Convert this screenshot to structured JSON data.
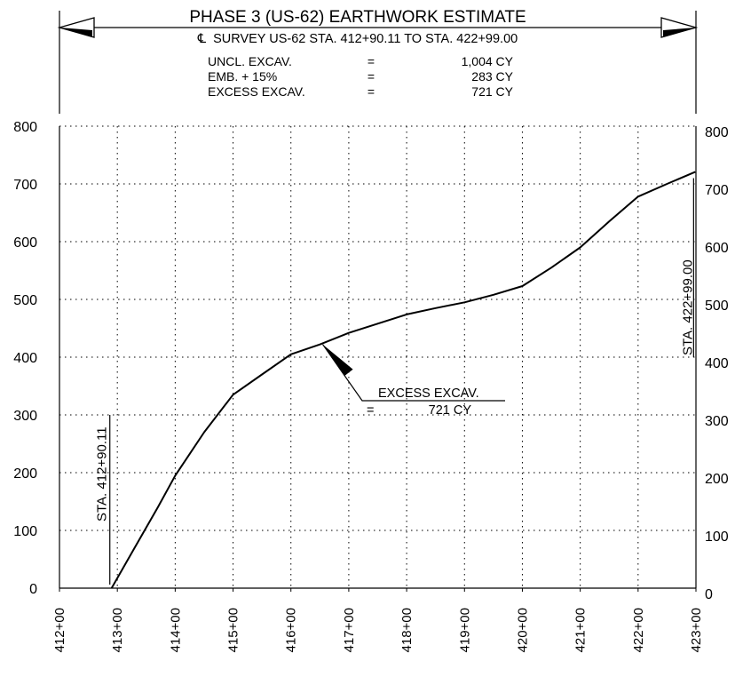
{
  "header": {
    "title": "PHASE 3 (US-62) EARTHWORK ESTIMATE",
    "cl_symbol": "℄",
    "subtitle": "SURVEY US-62 STA. 412+90.11 TO STA. 422+99.00",
    "rows": [
      {
        "label": "UNCL. EXCAV.",
        "eq": "=",
        "value": "1,004 CY"
      },
      {
        "label": "EMB. + 15%",
        "eq": "=",
        "value": "283 CY"
      },
      {
        "label": "EXCESS EXCAV.",
        "eq": "=",
        "value": "721 CY"
      }
    ]
  },
  "chart_data": {
    "type": "line",
    "title": "PHASE 3 (US-62) EARTHWORK ESTIMATE",
    "xlabel": "",
    "ylabel": "",
    "x_tick_labels": [
      "412+00",
      "413+00",
      "414+00",
      "415+00",
      "416+00",
      "417+00",
      "418+00",
      "419+00",
      "420+00",
      "421+00",
      "422+00",
      "423+00"
    ],
    "y_ticks_left": [
      "0",
      "100",
      "200",
      "300",
      "400",
      "500",
      "600",
      "700",
      "800"
    ],
    "y_ticks_right": [
      "0",
      "100",
      "200",
      "300",
      "400",
      "500",
      "600",
      "700",
      "800"
    ],
    "xlim": [
      412.0,
      423.0
    ],
    "ylim": [
      0,
      800
    ],
    "grid": true,
    "series": [
      {
        "x": [
          412.9011,
          413.3,
          413.7,
          414.0,
          414.5,
          415.0,
          415.5,
          416.0,
          416.5,
          417.0,
          417.5,
          418.0,
          418.5,
          419.0,
          419.5,
          420.0,
          420.5,
          421.0,
          421.5,
          422.0,
          422.5,
          422.99
        ],
        "y": [
          0,
          70,
          140,
          195,
          270,
          335,
          370,
          405,
          422,
          442,
          458,
          474,
          485,
          495,
          508,
          523,
          555,
          590,
          635,
          678,
          700,
          721
        ]
      }
    ],
    "annotations": [
      {
        "text": "STA. 412+90.11",
        "x": 412.9011
      },
      {
        "text": "STA. 422+99.00",
        "x": 422.99
      },
      {
        "label": "EXCESS EXCAV.",
        "eq": "=",
        "value": "721 CY",
        "x": 416.55,
        "y": 422
      }
    ]
  }
}
